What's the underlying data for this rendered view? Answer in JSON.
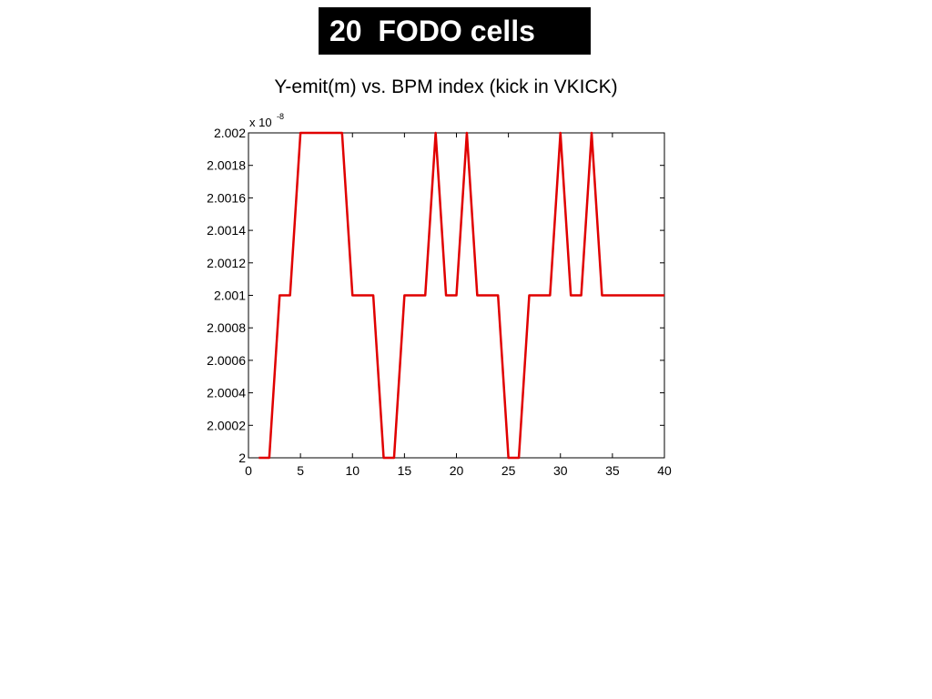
{
  "slide": {
    "title": "20  FODO cells"
  },
  "chart_data": {
    "type": "line",
    "title": "Y-emit(m) vs. BPM index (kick in VKICK)",
    "xlabel": "",
    "ylabel": "",
    "y_exponent_base": "x 10",
    "y_exponent_power": "-8",
    "xlim": [
      0,
      40
    ],
    "ylim": [
      2.0,
      2.002
    ],
    "xticks": [
      0,
      5,
      10,
      15,
      20,
      25,
      30,
      35,
      40
    ],
    "xtick_labels": [
      "0",
      "5",
      "10",
      "15",
      "20",
      "25",
      "30",
      "35",
      "40"
    ],
    "yticks": [
      2.0,
      2.0002,
      2.0004,
      2.0006,
      2.0008,
      2.001,
      2.0012,
      2.0014,
      2.0016,
      2.0018,
      2.002
    ],
    "ytick_labels": [
      "2",
      "2.0002",
      "2.0004",
      "2.0006",
      "2.0008",
      "2.001",
      "2.0012",
      "2.0014",
      "2.0016",
      "2.0018",
      "2.002"
    ],
    "grid": false,
    "line_color": "#e00000",
    "series": [
      {
        "x": [
          1,
          2,
          3,
          4,
          5,
          6,
          7,
          8,
          9,
          10,
          11,
          12,
          13,
          14,
          15,
          16,
          17,
          18,
          19,
          20,
          21,
          22,
          23,
          24,
          25,
          26,
          27,
          28,
          29,
          30,
          31,
          32,
          33,
          34,
          35,
          36,
          37,
          38,
          39,
          40
        ],
        "values": [
          2.0,
          2.0,
          2.001,
          2.001,
          2.002,
          2.002,
          2.002,
          2.002,
          2.002,
          2.001,
          2.001,
          2.001,
          2.0,
          2.0,
          2.001,
          2.001,
          2.001,
          2.002,
          2.001,
          2.001,
          2.002,
          2.001,
          2.001,
          2.001,
          2.0,
          2.0,
          2.001,
          2.001,
          2.001,
          2.002,
          2.001,
          2.001,
          2.002,
          2.001,
          2.001,
          2.001,
          2.001,
          2.001,
          2.001,
          2.001
        ]
      }
    ]
  }
}
